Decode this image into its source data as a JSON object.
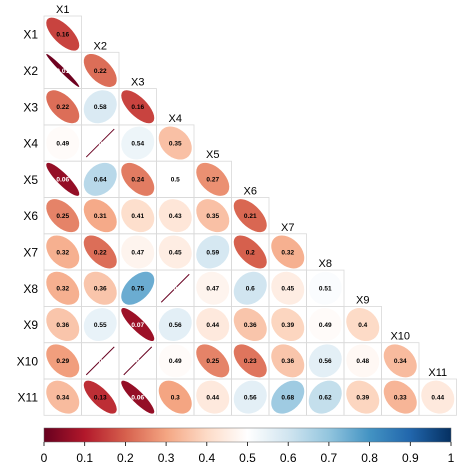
{
  "chart_data": {
    "type": "heatmap",
    "variables": [
      "X1",
      "X2",
      "X3",
      "X4",
      "X5",
      "X6",
      "X7",
      "X8",
      "X9",
      "X10",
      "X11"
    ],
    "matrix": [
      [
        0.16
      ],
      [
        0.01,
        0.22
      ],
      [
        0.22,
        0.58,
        0.16
      ],
      [
        0.49,
        0,
        0.54,
        0.35
      ],
      [
        0.06,
        0.64,
        0.24,
        0.5,
        0.27
      ],
      [
        0.25,
        0.31,
        0.41,
        0.43,
        0.35,
        0.21
      ],
      [
        0.32,
        0.22,
        0.47,
        0.45,
        0.59,
        0.2,
        0.32
      ],
      [
        0.32,
        0.36,
        0.75,
        0,
        0.47,
        0.6,
        0.45,
        0.51
      ],
      [
        0.36,
        0.55,
        0.07,
        0.56,
        0.44,
        0.36,
        0.39,
        0.49,
        0.4
      ],
      [
        0.29,
        0,
        0,
        0.49,
        0.25,
        0.23,
        0.36,
        0.56,
        0.48,
        0.34
      ],
      [
        0.34,
        0.13,
        0.06,
        0.3,
        0.44,
        0.56,
        0.68,
        0.62,
        0.39,
        0.33,
        0.44
      ]
    ],
    "value_labels": [
      [
        "0.16"
      ],
      [
        "0.01",
        "0.22"
      ],
      [
        "0.22",
        "0.58",
        "0.16"
      ],
      [
        "0.49",
        "0",
        "0.54",
        "0.35"
      ],
      [
        "0.06",
        "0.64",
        "0.24",
        "0.5",
        "0.27"
      ],
      [
        "0.25",
        "0.31",
        "0.41",
        "0.43",
        "0.35",
        "0.21"
      ],
      [
        "0.32",
        "0.22",
        "0.47",
        "0.45",
        "0.59",
        "0.2",
        "0.32"
      ],
      [
        "0.32",
        "0.36",
        "0.75",
        "0",
        "0.47",
        "0.6",
        "0.45",
        "0.51"
      ],
      [
        "0.36",
        "0.55",
        "0.07",
        "0.56",
        "0.44",
        "0.36",
        "0.39",
        "0.49",
        "0.4"
      ],
      [
        "0.29",
        "0",
        "0",
        "0.49",
        "0.25",
        "0.23",
        "0.36",
        "0.56",
        "0.48",
        "0.34"
      ],
      [
        "0.34",
        "0.13",
        "0.06",
        "0.3",
        "0.44",
        "0.56",
        "0.68",
        "0.62",
        "0.39",
        "0.33",
        "0.44"
      ]
    ],
    "colorbar": {
      "range": [
        0,
        1
      ],
      "ticks": [
        "0",
        "0.1",
        "0.2",
        "0.3",
        "0.4",
        "0.5",
        "0.6",
        "0.7",
        "0.8",
        "0.9",
        "1"
      ],
      "colors": [
        "#67001f",
        "#b2182b",
        "#d6604d",
        "#f4a582",
        "#fddbc7",
        "#ffffff",
        "#d1e5f0",
        "#92c5de",
        "#4393c3",
        "#2166ac",
        "#053061"
      ]
    },
    "title": "",
    "xlabel": "",
    "ylabel": ""
  }
}
